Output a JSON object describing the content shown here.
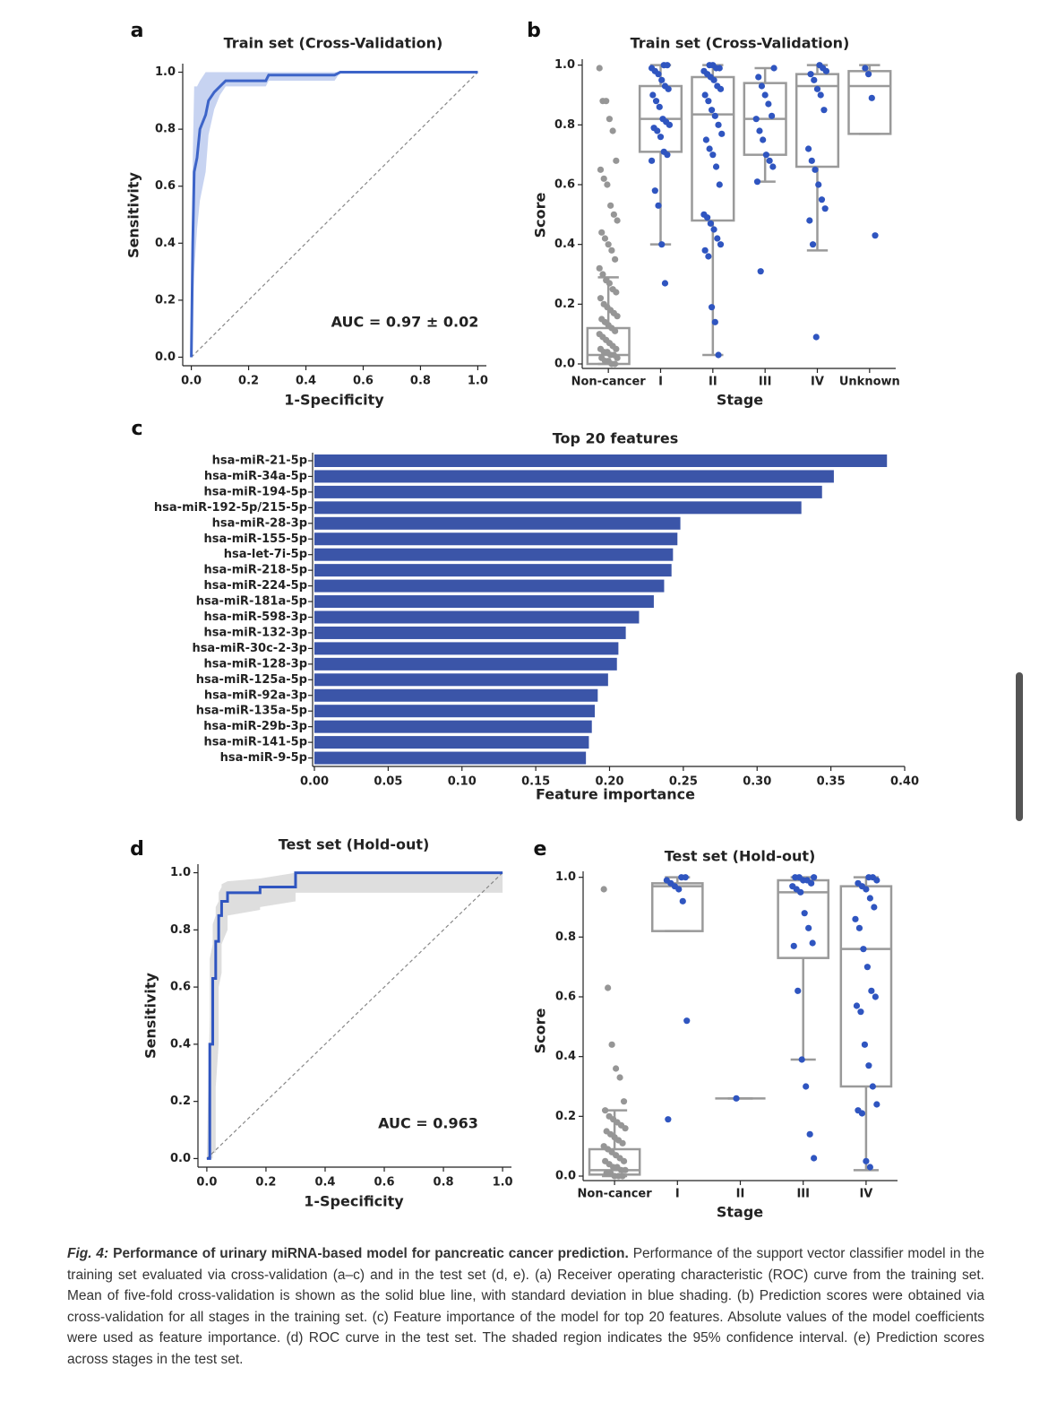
{
  "chart_data": [
    {
      "type": "line",
      "panel": "a",
      "title": "Train set (Cross-Validation)",
      "xlabel": "1-Specificity",
      "ylabel": "Sensitivity",
      "annotation": "AUC = 0.97 ± 0.02",
      "x": [
        0,
        0.005,
        0.01,
        0.02,
        0.03,
        0.05,
        0.06,
        0.08,
        0.1,
        0.12,
        0.26,
        0.27,
        0.5,
        0.52,
        1.0
      ],
      "values": [
        0,
        0.4,
        0.65,
        0.7,
        0.8,
        0.85,
        0.9,
        0.93,
        0.95,
        0.97,
        0.97,
        0.99,
        0.99,
        1.0,
        1.0
      ],
      "band_lower": [
        0,
        0.15,
        0.3,
        0.45,
        0.55,
        0.65,
        0.78,
        0.87,
        0.92,
        0.95,
        0.95,
        0.97,
        0.97,
        1.0,
        1.0
      ],
      "band_upper": [
        0.2,
        0.7,
        0.95,
        0.95,
        0.97,
        1.0,
        1.0,
        1.0,
        1.0,
        1.0,
        1.0,
        1.0,
        1.0,
        1.0,
        1.0
      ],
      "color": "#3d64c8",
      "band_color": "#b9c8ee",
      "xlim": [
        -0.03,
        1.03
      ],
      "ylim": [
        -0.03,
        1.03
      ],
      "xticks": [
        {
          "value": 0,
          "label": "0.0"
        },
        0.2,
        0.4,
        0.6,
        0.8,
        {
          "value": 1,
          "label": "1.0"
        }
      ],
      "yticks": [
        {
          "value": 0,
          "label": "0.0"
        },
        0.2,
        0.4,
        0.6,
        0.8,
        {
          "value": 1,
          "label": "1.0"
        }
      ]
    },
    {
      "type": "box",
      "panel": "b",
      "title": "Train set (Cross-Validation)",
      "xlabel": "Stage",
      "ylabel": "Score",
      "categories": [
        "Non-cancer",
        "I",
        "II",
        "III",
        "IV",
        "Unknown"
      ],
      "min": [
        0.0,
        0.4,
        0.03,
        0.61,
        0.38,
        0.77
      ],
      "q1": [
        0.0,
        0.71,
        0.48,
        0.7,
        0.66,
        0.77
      ],
      "median": [
        0.03,
        0.82,
        0.835,
        0.82,
        0.93,
        0.93
      ],
      "q3": [
        0.12,
        0.93,
        0.96,
        0.94,
        0.97,
        0.98
      ],
      "max": [
        0.29,
        1.0,
        1.0,
        0.99,
        1.0,
        1.0
      ],
      "points": [
        [
          0.99,
          0.88,
          0.88,
          0.82,
          0.78,
          0.68,
          0.65,
          0.62,
          0.6,
          0.53,
          0.5,
          0.48,
          0.44,
          0.42,
          0.4,
          0.38,
          0.35,
          0.32,
          0.3,
          0.28,
          0.27,
          0.25,
          0.24,
          0.22,
          0.2,
          0.19,
          0.18,
          0.17,
          0.16,
          0.15,
          0.14,
          0.13,
          0.12,
          0.11,
          0.1,
          0.09,
          0.08,
          0.07,
          0.06,
          0.05,
          0.05,
          0.04,
          0.04,
          0.03,
          0.03,
          0.02,
          0.02,
          0.01,
          0.01,
          0.0,
          0.0
        ],
        [
          1.0,
          1.0,
          0.99,
          0.98,
          0.97,
          0.95,
          0.93,
          0.92,
          0.9,
          0.88,
          0.86,
          0.82,
          0.81,
          0.8,
          0.79,
          0.78,
          0.76,
          0.71,
          0.7,
          0.68,
          0.58,
          0.53,
          0.4,
          0.27
        ],
        [
          1.0,
          1.0,
          0.99,
          0.99,
          0.98,
          0.97,
          0.96,
          0.95,
          0.93,
          0.92,
          0.9,
          0.88,
          0.85,
          0.83,
          0.8,
          0.77,
          0.75,
          0.72,
          0.7,
          0.66,
          0.6,
          0.5,
          0.49,
          0.47,
          0.45,
          0.42,
          0.4,
          0.38,
          0.36,
          0.19,
          0.14,
          0.03
        ],
        [
          0.99,
          0.96,
          0.93,
          0.9,
          0.87,
          0.83,
          0.82,
          0.78,
          0.75,
          0.7,
          0.68,
          0.66,
          0.61,
          0.31
        ],
        [
          1.0,
          0.99,
          0.98,
          0.97,
          0.95,
          0.92,
          0.9,
          0.85,
          0.72,
          0.68,
          0.65,
          0.6,
          0.55,
          0.52,
          0.48,
          0.4,
          0.09
        ],
        [
          0.99,
          0.97,
          0.89,
          0.43
        ]
      ],
      "point_colors": [
        "#969696",
        "#2f55c0",
        "#2f55c0",
        "#2f55c0",
        "#2f55c0",
        "#2f55c0"
      ],
      "box_color": "#9a9a9a",
      "ylim": [
        -0.015,
        1.02
      ],
      "yticks": [
        {
          "value": 0,
          "label": "0.0"
        },
        0.2,
        0.4,
        0.6,
        0.8,
        {
          "value": 1,
          "label": "1.0"
        }
      ]
    },
    {
      "type": "bar",
      "orientation": "horizontal",
      "panel": "c",
      "title": "Top 20 features",
      "xlabel": "Feature importance",
      "categories": [
        "hsa-miR-21-5p",
        "hsa-miR-34a-5p",
        "hsa-miR-194-5p",
        "hsa-miR-192-5p/215-5p",
        "hsa-miR-28-3p",
        "hsa-miR-155-5p",
        "hsa-let-7i-5p",
        "hsa-miR-218-5p",
        "hsa-miR-224-5p",
        "hsa-miR-181a-5p",
        "hsa-miR-598-3p",
        "hsa-miR-132-3p",
        "hsa-miR-30c-2-3p",
        "hsa-miR-128-3p",
        "hsa-miR-125a-5p",
        "hsa-miR-92a-3p",
        "hsa-miR-135a-5p",
        "hsa-miR-29b-3p",
        "hsa-miR-141-5p",
        "hsa-miR-9-5p"
      ],
      "values": [
        0.388,
        0.352,
        0.344,
        0.33,
        0.248,
        0.246,
        0.243,
        0.242,
        0.237,
        0.23,
        0.22,
        0.211,
        0.206,
        0.205,
        0.199,
        0.192,
        0.19,
        0.188,
        0.186,
        0.184
      ],
      "color": "#3b55a8",
      "xlim": [
        0,
        0.4
      ],
      "xticks": [
        {
          "value": 0,
          "label": "0.00"
        },
        0.05,
        {
          "value": 0.1,
          "label": "0.10"
        },
        0.15,
        {
          "value": 0.2,
          "label": "0.20"
        },
        0.25,
        {
          "value": 0.3,
          "label": "0.30"
        },
        0.35,
        {
          "value": 0.4,
          "label": "0.40"
        }
      ]
    },
    {
      "type": "line",
      "panel": "d",
      "title": "Test set (Hold-out)",
      "xlabel": "1-Specificity",
      "ylabel": "Sensitivity",
      "annotation": "AUC = 0.963",
      "x": [
        0,
        0.01,
        0.01,
        0.02,
        0.02,
        0.03,
        0.03,
        0.04,
        0.04,
        0.05,
        0.05,
        0.07,
        0.07,
        0.18,
        0.18,
        0.3,
        0.3,
        1.0
      ],
      "values": [
        0,
        0,
        0.4,
        0.4,
        0.63,
        0.63,
        0.76,
        0.76,
        0.85,
        0.85,
        0.9,
        0.9,
        0.93,
        0.93,
        0.95,
        0.95,
        1.0,
        1.0
      ],
      "band_lower": [
        0,
        0,
        0,
        0,
        0.02,
        0.02,
        0.25,
        0.4,
        0.6,
        0.65,
        0.75,
        0.8,
        0.85,
        0.87,
        0.88,
        0.9,
        0.93,
        0.93
      ],
      "band_upper": [
        0,
        0.5,
        0.7,
        0.75,
        0.82,
        0.85,
        0.88,
        0.9,
        0.93,
        0.95,
        0.96,
        0.97,
        0.97,
        0.98,
        0.98,
        1.0,
        1.0,
        1.0
      ],
      "color": "#2f55c0",
      "band_color": "#d6d6d6",
      "xlim": [
        -0.03,
        1.03
      ],
      "ylim": [
        -0.03,
        1.03
      ],
      "xticks": [
        {
          "value": 0,
          "label": "0.0"
        },
        0.2,
        0.4,
        0.6,
        0.8,
        {
          "value": 1,
          "label": "1.0"
        }
      ],
      "yticks": [
        {
          "value": 0,
          "label": "0.0"
        },
        0.2,
        0.4,
        0.6,
        0.8,
        {
          "value": 1,
          "label": "1.0"
        }
      ]
    },
    {
      "type": "box",
      "panel": "e",
      "title": "Test set (Hold-out)",
      "xlabel": "Stage",
      "ylabel": "Score",
      "categories": [
        "Non-cancer",
        "I",
        "II",
        "III",
        "IV"
      ],
      "min": [
        0.0,
        0.82,
        0.26,
        0.39,
        0.02
      ],
      "q1": [
        0.005,
        0.82,
        0.26,
        0.73,
        0.3
      ],
      "median": [
        0.02,
        0.97,
        0.26,
        0.95,
        0.76
      ],
      "q3": [
        0.09,
        0.98,
        0.26,
        0.99,
        0.97
      ],
      "max": [
        0.22,
        1.0,
        0.26,
        1.0,
        1.0
      ],
      "points": [
        [
          0.96,
          0.63,
          0.44,
          0.36,
          0.33,
          0.25,
          0.22,
          0.2,
          0.19,
          0.18,
          0.17,
          0.16,
          0.15,
          0.14,
          0.13,
          0.12,
          0.11,
          0.1,
          0.09,
          0.08,
          0.07,
          0.06,
          0.05,
          0.05,
          0.04,
          0.03,
          0.03,
          0.02,
          0.02,
          0.01,
          0.01,
          0.0,
          0.0,
          0.0
        ],
        [
          1.0,
          1.0,
          0.99,
          0.98,
          0.97,
          0.96,
          0.92,
          0.52,
          0.19
        ],
        [
          0.26
        ],
        [
          1.0,
          1.0,
          1.0,
          0.99,
          0.99,
          0.98,
          0.97,
          0.96,
          0.95,
          0.88,
          0.83,
          0.78,
          0.77,
          0.62,
          0.39,
          0.3,
          0.14,
          0.06
        ],
        [
          1.0,
          1.0,
          0.99,
          0.98,
          0.97,
          0.96,
          0.93,
          0.9,
          0.86,
          0.83,
          0.76,
          0.7,
          0.62,
          0.6,
          0.57,
          0.55,
          0.44,
          0.37,
          0.3,
          0.24,
          0.22,
          0.21,
          0.05,
          0.03
        ]
      ],
      "point_colors": [
        "#969696",
        "#2f55c0",
        "#2f55c0",
        "#2f55c0",
        "#2f55c0"
      ],
      "box_color": "#9a9a9a",
      "ylim": [
        -0.015,
        1.02
      ],
      "yticks": [
        {
          "value": 0,
          "label": "0.0"
        },
        0.2,
        0.4,
        0.6,
        0.8,
        {
          "value": 1,
          "label": "1.0"
        }
      ]
    }
  ],
  "caption": {
    "label": "Fig. 4:",
    "heading": "Performance of urinary miRNA-based model for pancreatic cancer prediction.",
    "text": "Performance of the support vector classifier model in the training set evaluated via cross-validation (a–c) and in the test set (d, e). (a) Receiver operating characteristic (ROC) curve from the training set. Mean of five-fold cross-validation is shown as the solid blue line, with standard deviation in blue shading. (b) Prediction scores were obtained via cross-validation for all stages in the training set. (c) Feature importance of the model for top 20 features. Absolute values of the model coefficients were used as feature importance. (d) ROC curve in the test set. The shaded region indicates the 95% confidence interval. (e) Prediction scores across stages in the test set."
  }
}
